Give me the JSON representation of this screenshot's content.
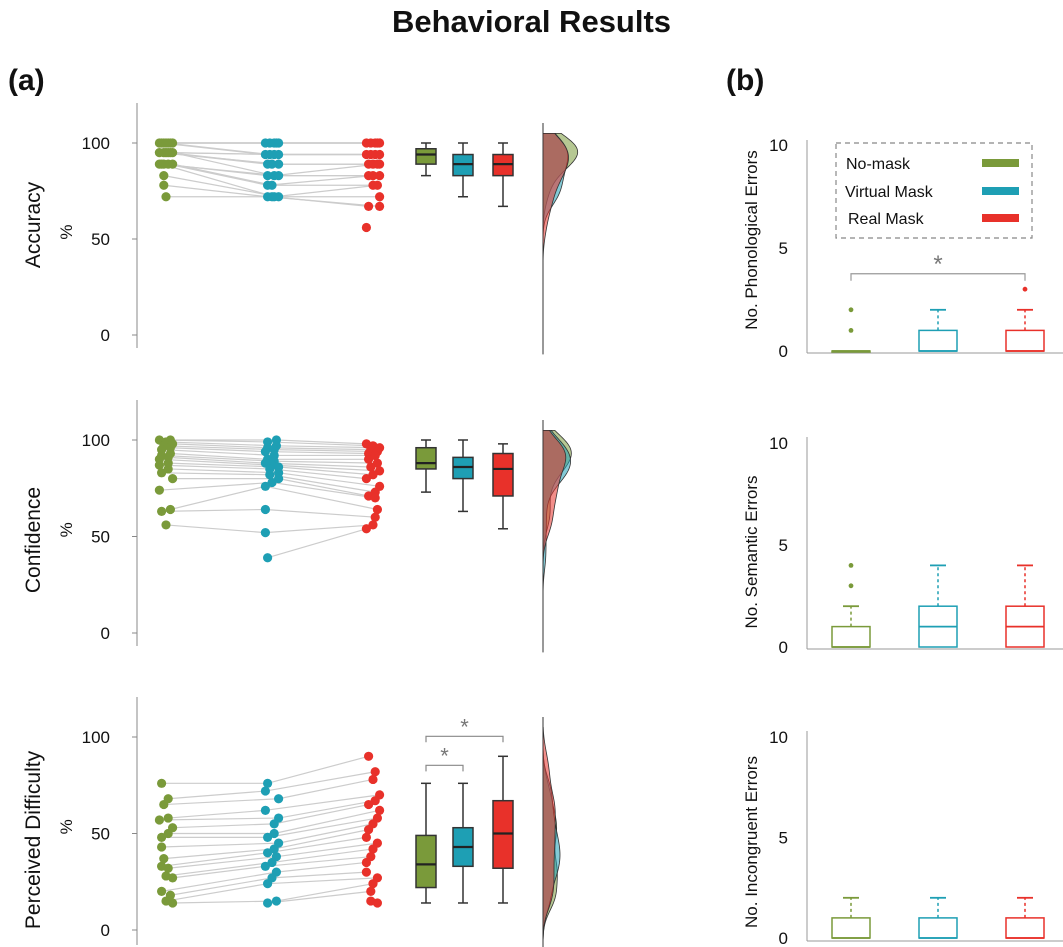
{
  "figure": {
    "title": "Behavioral Results",
    "panel_a": "(a)",
    "panel_b": "(b)"
  },
  "colors": {
    "no_mask": "#7a9a3a",
    "virtual_mask": "#1e9fb4",
    "real_mask": "#e8312a",
    "lines": "#cccccc",
    "density_overlap": "#2e7d6e"
  },
  "chart_data": [
    {
      "type": "scatter",
      "panel": "(a)",
      "ylabel": "Accuracy",
      "unit": "%",
      "yticks": [
        0,
        50,
        100
      ],
      "ylim": [
        0,
        115
      ],
      "groups": [
        {
          "name": "No-mask",
          "values": [
            100,
            100,
            100,
            100,
            100,
            100,
            100,
            95,
            95,
            95,
            95,
            95,
            95,
            89,
            89,
            89,
            89,
            89,
            83,
            78,
            72
          ]
        },
        {
          "name": "Virtual Mask",
          "values": [
            100,
            100,
            100,
            100,
            100,
            94,
            94,
            94,
            94,
            89,
            89,
            89,
            83,
            83,
            83,
            78,
            78,
            72,
            72,
            72,
            72
          ]
        },
        {
          "name": "Real Mask",
          "values": [
            100,
            100,
            100,
            100,
            100,
            94,
            94,
            94,
            94,
            89,
            89,
            89,
            89,
            83,
            83,
            83,
            78,
            78,
            72,
            67,
            67,
            56
          ]
        }
      ],
      "boxes": [
        {
          "name": "No-mask",
          "whisker_low": 83,
          "q1": 89,
          "median": 94,
          "q3": 97,
          "whisker_high": 100
        },
        {
          "name": "Virtual Mask",
          "whisker_low": 72,
          "q1": 83,
          "median": 89,
          "q3": 94,
          "whisker_high": 100
        },
        {
          "name": "Real Mask",
          "whisker_low": 67,
          "q1": 83,
          "median": 89,
          "q3": 94,
          "whisker_high": 100
        }
      ]
    },
    {
      "type": "scatter",
      "panel": "(a)",
      "ylabel": "Confidence",
      "unit": "%",
      "yticks": [
        0,
        50,
        100
      ],
      "ylim": [
        0,
        120
      ],
      "groups": [
        {
          "name": "No-mask",
          "values": [
            100,
            100,
            99,
            98,
            97,
            96,
            95,
            93,
            92,
            91,
            90,
            88,
            87,
            85,
            83,
            80,
            74,
            64,
            63,
            56
          ]
        },
        {
          "name": "Virtual Mask",
          "values": [
            100,
            99,
            97,
            96,
            95,
            94,
            92,
            90,
            89,
            88,
            87,
            86,
            85,
            83,
            82,
            80,
            78,
            76,
            64,
            52,
            39
          ]
        },
        {
          "name": "Real Mask",
          "values": [
            98,
            97,
            96,
            95,
            94,
            93,
            92,
            90,
            88,
            86,
            84,
            82,
            80,
            76,
            73,
            71,
            70,
            64,
            60,
            56,
            54
          ]
        }
      ],
      "boxes": [
        {
          "name": "No-mask",
          "whisker_low": 73,
          "q1": 85,
          "median": 88,
          "q3": 96,
          "whisker_high": 100
        },
        {
          "name": "Virtual Mask",
          "whisker_low": 63,
          "q1": 80,
          "median": 86,
          "q3": 91,
          "whisker_high": 100
        },
        {
          "name": "Real Mask",
          "whisker_low": 54,
          "q1": 71,
          "median": 85,
          "q3": 93,
          "whisker_high": 98
        }
      ]
    },
    {
      "type": "scatter",
      "panel": "(a)",
      "ylabel": "Perceived Difficulty",
      "unit": "%",
      "yticks": [
        0,
        50,
        100
      ],
      "ylim": [
        0,
        120
      ],
      "significance": [
        "*",
        "*"
      ],
      "groups": [
        {
          "name": "No-mask",
          "values": [
            76,
            68,
            65,
            58,
            57,
            53,
            50,
            48,
            43,
            37,
            33,
            32,
            28,
            27,
            20,
            18,
            15,
            14
          ]
        },
        {
          "name": "Virtual Mask",
          "values": [
            76,
            72,
            68,
            62,
            58,
            55,
            50,
            48,
            45,
            42,
            40,
            38,
            35,
            33,
            30,
            27,
            24,
            15,
            14
          ]
        },
        {
          "name": "Real Mask",
          "values": [
            90,
            82,
            78,
            70,
            67,
            65,
            62,
            58,
            55,
            52,
            48,
            45,
            42,
            38,
            35,
            30,
            27,
            24,
            20,
            15,
            14
          ]
        }
      ],
      "boxes": [
        {
          "name": "No-mask",
          "whisker_low": 14,
          "q1": 22,
          "median": 34,
          "q3": 49,
          "whisker_high": 76
        },
        {
          "name": "Virtual Mask",
          "whisker_low": 14,
          "q1": 33,
          "median": 43,
          "q3": 53,
          "whisker_high": 76
        },
        {
          "name": "Real Mask",
          "whisker_low": 14,
          "q1": 32,
          "median": 50,
          "q3": 67,
          "whisker_high": 90
        }
      ]
    },
    {
      "type": "bar",
      "panel": "(b)",
      "ylabel": "No. Phonological  Errors",
      "yticks": [
        0,
        5,
        10
      ],
      "ylim": [
        0,
        10
      ],
      "significance": [
        "*"
      ],
      "legend": {
        "position": "top",
        "entries": [
          "No-mask",
          "Virtual Mask",
          "Real Mask"
        ]
      },
      "boxes": [
        {
          "name": "No-mask",
          "whisker_low": 0,
          "q1": 0,
          "median": 0,
          "q3": 0,
          "whisker_high": 0,
          "outliers": [
            1,
            2
          ]
        },
        {
          "name": "Virtual Mask",
          "whisker_low": 0,
          "q1": 0,
          "median": 0,
          "q3": 1,
          "whisker_high": 2,
          "outliers": []
        },
        {
          "name": "Real Mask",
          "whisker_low": 0,
          "q1": 0,
          "median": 0,
          "q3": 1,
          "whisker_high": 2,
          "outliers": [
            3
          ]
        }
      ]
    },
    {
      "type": "bar",
      "panel": "(b)",
      "ylabel": "No. Semantic  Errors",
      "yticks": [
        0,
        5,
        10
      ],
      "ylim": [
        0,
        10
      ],
      "boxes": [
        {
          "name": "No-mask",
          "whisker_low": 0,
          "q1": 0,
          "median": 0,
          "q3": 1,
          "whisker_high": 2,
          "outliers": [
            3,
            4
          ]
        },
        {
          "name": "Virtual Mask",
          "whisker_low": 0,
          "q1": 0,
          "median": 1,
          "q3": 2,
          "whisker_high": 4,
          "outliers": []
        },
        {
          "name": "Real Mask",
          "whisker_low": 0,
          "q1": 0,
          "median": 1,
          "q3": 2,
          "whisker_high": 4,
          "outliers": []
        }
      ]
    },
    {
      "type": "bar",
      "panel": "(b)",
      "ylabel": "No. Incongruent  Errors",
      "yticks": [
        0,
        5,
        10
      ],
      "ylim": [
        0,
        10
      ],
      "boxes": [
        {
          "name": "No-mask",
          "whisker_low": 0,
          "q1": 0,
          "median": 0,
          "q3": 1,
          "whisker_high": 2,
          "outliers": []
        },
        {
          "name": "Virtual Mask",
          "whisker_low": 0,
          "q1": 0,
          "median": 0,
          "q3": 1,
          "whisker_high": 2,
          "outliers": []
        },
        {
          "name": "Real Mask",
          "whisker_low": 0,
          "q1": 0,
          "median": 0,
          "q3": 1,
          "whisker_high": 2,
          "outliers": []
        }
      ]
    }
  ]
}
